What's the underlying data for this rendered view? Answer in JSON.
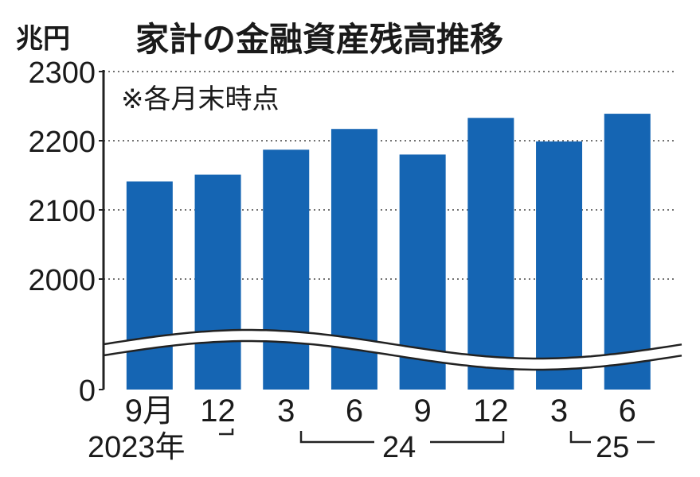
{
  "chart_data": {
    "type": "bar",
    "title": "家計の金融資産残高推移",
    "unit": "兆円",
    "note": "※各月末時点",
    "categories": [
      "9月",
      "12",
      "3",
      "6",
      "9",
      "12",
      "3",
      "6"
    ],
    "values": [
      2141,
      2151,
      2187,
      2217,
      2180,
      2233,
      2199,
      2239
    ],
    "y_ticks": [
      "0",
      "2000",
      "2100",
      "2200",
      "2300"
    ],
    "y_break": true,
    "ylim": [
      0,
      2300
    ],
    "grid": true,
    "year_labels": [
      "2023年",
      "24",
      "25"
    ],
    "colors": {
      "bar": "#1565b3",
      "axis": "#222222",
      "grid": "#444444"
    }
  }
}
